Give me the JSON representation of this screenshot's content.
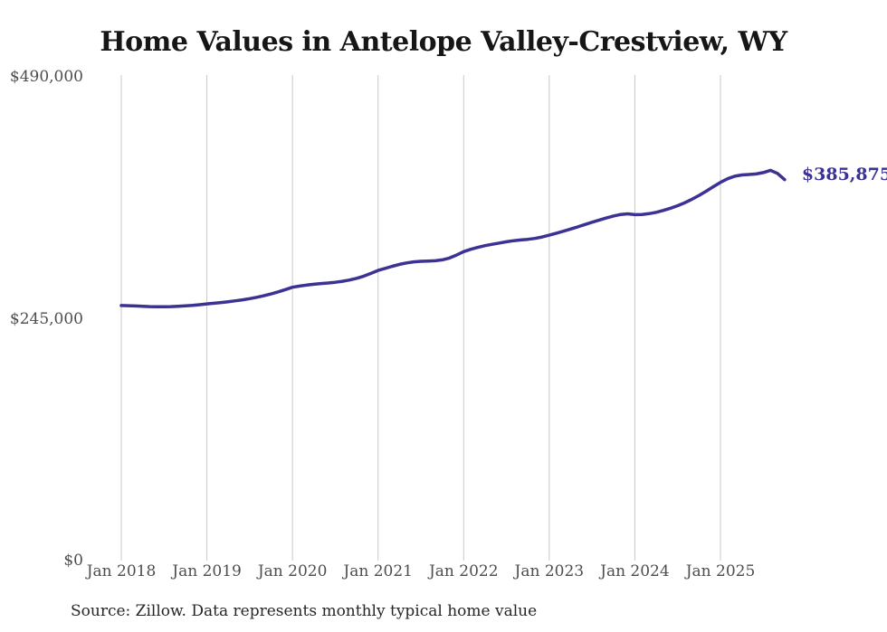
{
  "title": "Home Values in Antelope Valley-Crestview, WY",
  "footer": "Source: Zillow. Data represents monthly typical home value",
  "colors": {
    "line": "#3b3294",
    "grid": "#c9c9c9",
    "title_text": "#161616",
    "tick_text": "#4d4d4d",
    "footer_text": "#262626"
  },
  "chart_data": {
    "type": "line",
    "title": "Home Values in Antelope Valley-Crestview, WY",
    "xlabel": "",
    "ylabel": "",
    "x_start": "Jan 2018",
    "x_end": "Oct 2025",
    "x_tick_labels": [
      "Jan 2018",
      "Jan 2019",
      "Jan 2020",
      "Jan 2021",
      "Jan 2022",
      "Jan 2023",
      "Jan 2024",
      "Jan 2025"
    ],
    "y_ticks": [
      {
        "label": "$490,000",
        "value": 490000
      },
      {
        "label": "$245,000",
        "value": 245000
      },
      {
        "label": "$0",
        "value": 0
      }
    ],
    "ylim": [
      0,
      490000
    ],
    "grid": "vertical-only",
    "legend": "none",
    "end_label": "$385,875",
    "last_value": 385875,
    "series": [
      {
        "name": "Monthly typical home value",
        "values": [
          258400,
          258200,
          257900,
          257600,
          257300,
          257100,
          257100,
          257300,
          257600,
          258000,
          258500,
          259200,
          260000,
          260700,
          261400,
          262200,
          263100,
          264100,
          265300,
          266700,
          268300,
          270100,
          272200,
          274500,
          276900,
          278100,
          279100,
          279900,
          280600,
          281200,
          281900,
          282900,
          284200,
          285900,
          288100,
          290900,
          293900,
          296000,
          298100,
          300000,
          301500,
          302600,
          303200,
          303400,
          303700,
          304600,
          306500,
          309500,
          313000,
          315300,
          317300,
          319000,
          320400,
          321700,
          322900,
          324000,
          324800,
          325400,
          326300,
          327800,
          329600,
          331600,
          333700,
          335900,
          338100,
          340400,
          342700,
          344900,
          347000,
          349000,
          350600,
          351200,
          350400,
          350600,
          351400,
          352800,
          354700,
          356900,
          359500,
          362500,
          366000,
          369900,
          374100,
          378700,
          383100,
          386800,
          389300,
          390600,
          391100,
          391600,
          393000,
          395300,
          392200,
          385875
        ]
      }
    ]
  }
}
